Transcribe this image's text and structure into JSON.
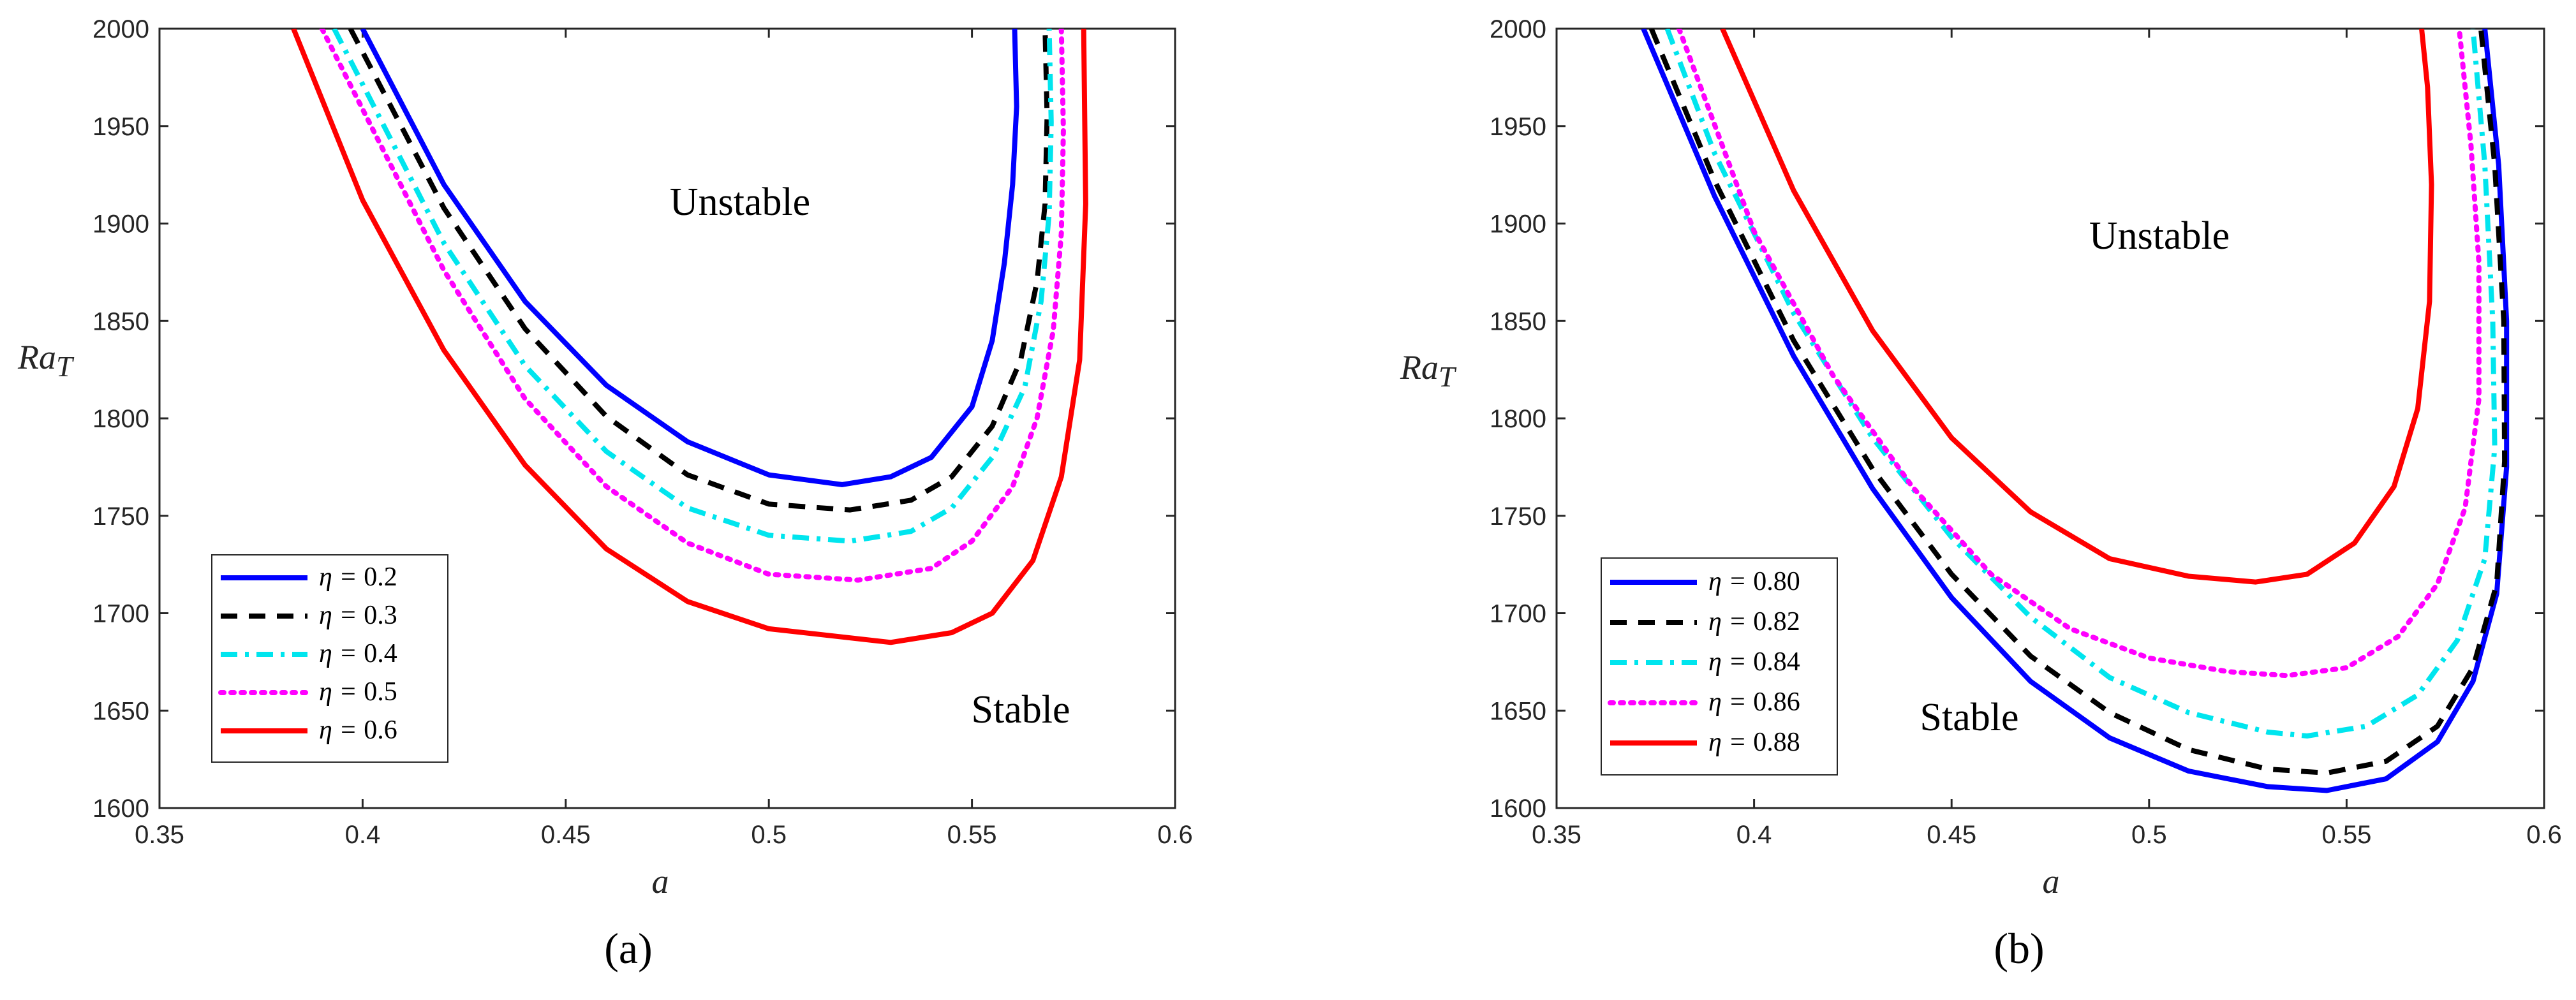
{
  "chart_data": [
    {
      "type": "line",
      "panel_label": "(a)",
      "xlabel": "a",
      "ylabel": "Ra",
      "ylabel_sub": "T",
      "xlim": [
        0.35,
        0.6
      ],
      "ylim": [
        1600,
        2000
      ],
      "xticks": [
        "0.35",
        "0.4",
        "0.45",
        "0.5",
        "0.55",
        "0.6"
      ],
      "yticks": [
        "1600",
        "1650",
        "1700",
        "1750",
        "1800",
        "1850",
        "1900",
        "1950",
        "2000"
      ],
      "region_labels": {
        "upper": "Unstable",
        "lower": "Stable"
      },
      "legend_position": "bottom-left",
      "legend_prefix": "η = ",
      "series": [
        {
          "name": "0.2",
          "color": "#0000ff",
          "style": "solid",
          "x": [
            0.4,
            0.42,
            0.44,
            0.46,
            0.48,
            0.5,
            0.518,
            0.53,
            0.54,
            0.55,
            0.555,
            0.558,
            0.56,
            0.561,
            0.5605
          ],
          "y": [
            2000,
            1920,
            1860,
            1817,
            1788,
            1771,
            1766,
            1770,
            1780,
            1806,
            1840,
            1880,
            1920,
            1960,
            2000
          ]
        },
        {
          "name": "0.3",
          "color": "#000000",
          "style": "dashed",
          "x": [
            0.397,
            0.42,
            0.44,
            0.46,
            0.48,
            0.5,
            0.52,
            0.535,
            0.545,
            0.555,
            0.562,
            0.566,
            0.568,
            0.5685,
            0.568
          ],
          "y": [
            2000,
            1908,
            1846,
            1801,
            1771,
            1756,
            1753,
            1758,
            1770,
            1796,
            1830,
            1870,
            1910,
            1955,
            2000
          ]
        },
        {
          "name": "0.4",
          "color": "#00e5ee",
          "style": "dashdot",
          "x": [
            0.393,
            0.42,
            0.44,
            0.46,
            0.48,
            0.5,
            0.52,
            0.535,
            0.545,
            0.555,
            0.563,
            0.567,
            0.569,
            0.5695,
            0.569
          ],
          "y": [
            2000,
            1890,
            1827,
            1783,
            1754,
            1740,
            1737,
            1742,
            1754,
            1780,
            1816,
            1860,
            1905,
            1952,
            2000
          ]
        },
        {
          "name": "0.5",
          "color": "#ff00ff",
          "style": "dotted",
          "x": [
            0.39,
            0.42,
            0.44,
            0.46,
            0.48,
            0.5,
            0.522,
            0.54,
            0.55,
            0.56,
            0.566,
            0.57,
            0.572,
            0.5725,
            0.572
          ],
          "y": [
            2000,
            1876,
            1810,
            1765,
            1736,
            1720,
            1717,
            1723,
            1737,
            1765,
            1800,
            1845,
            1895,
            1948,
            2000
          ]
        },
        {
          "name": "0.6",
          "color": "#ff0000",
          "style": "solid",
          "x": [
            0.383,
            0.4,
            0.42,
            0.44,
            0.46,
            0.48,
            0.5,
            0.53,
            0.545,
            0.555,
            0.565,
            0.572,
            0.5765,
            0.578,
            0.5775
          ],
          "y": [
            2000,
            1912,
            1835,
            1776,
            1733,
            1706,
            1692,
            1685,
            1690,
            1700,
            1727,
            1770,
            1830,
            1910,
            2000
          ]
        }
      ]
    },
    {
      "type": "line",
      "panel_label": "(b)",
      "xlabel": "a",
      "ylabel": "Ra",
      "ylabel_sub": "T",
      "xlim": [
        0.35,
        0.6
      ],
      "ylim": [
        1600,
        2000
      ],
      "xticks": [
        "0.35",
        "0.4",
        "0.45",
        "0.5",
        "0.55",
        "0.6"
      ],
      "yticks": [
        "1600",
        "1650",
        "1700",
        "1750",
        "1800",
        "1850",
        "1900",
        "1950",
        "2000"
      ],
      "region_labels": {
        "upper": "Unstable",
        "lower": "Stable"
      },
      "legend_position": "bottom-left",
      "legend_prefix": "η = ",
      "series": [
        {
          "name": "0.80",
          "color": "#0000ff",
          "style": "solid",
          "x": [
            0.372,
            0.39,
            0.41,
            0.43,
            0.45,
            0.47,
            0.49,
            0.51,
            0.53,
            0.545,
            0.56,
            0.573,
            0.582,
            0.588,
            0.5905,
            0.5905,
            0.5885,
            0.585
          ],
          "y": [
            2000,
            1914,
            1832,
            1764,
            1708,
            1665,
            1636,
            1619,
            1611,
            1609,
            1615,
            1634,
            1665,
            1710,
            1775,
            1850,
            1930,
            2000
          ]
        },
        {
          "name": "0.82",
          "color": "#000000",
          "style": "dashed",
          "x": [
            0.374,
            0.39,
            0.41,
            0.43,
            0.45,
            0.47,
            0.49,
            0.51,
            0.53,
            0.545,
            0.56,
            0.573,
            0.582,
            0.588,
            0.59,
            0.5898,
            0.5875,
            0.584
          ],
          "y": [
            2000,
            1922,
            1840,
            1774,
            1720,
            1678,
            1649,
            1630,
            1620,
            1618,
            1624,
            1642,
            1672,
            1715,
            1778,
            1850,
            1930,
            2000
          ]
        },
        {
          "name": "0.84",
          "color": "#00e5ee",
          "style": "dashdot",
          "x": [
            0.378,
            0.39,
            0.41,
            0.43,
            0.45,
            0.47,
            0.49,
            0.51,
            0.53,
            0.54,
            0.555,
            0.568,
            0.578,
            0.585,
            0.5875,
            0.587,
            0.585,
            0.582
          ],
          "y": [
            2000,
            1936,
            1854,
            1790,
            1739,
            1698,
            1667,
            1649,
            1639,
            1637,
            1642,
            1658,
            1686,
            1728,
            1785,
            1850,
            1930,
            2000
          ]
        },
        {
          "name": "0.86",
          "color": "#ff00ff",
          "style": "dotted",
          "x": [
            0.381,
            0.4,
            0.42,
            0.44,
            0.46,
            0.48,
            0.5,
            0.52,
            0.535,
            0.55,
            0.563,
            0.573,
            0.58,
            0.5835,
            0.5835,
            0.5815,
            0.5785
          ],
          "y": [
            2000,
            1896,
            1822,
            1765,
            1720,
            1692,
            1677,
            1670,
            1668,
            1672,
            1688,
            1715,
            1754,
            1810,
            1880,
            1940,
            2000
          ]
        },
        {
          "name": "0.88",
          "color": "#ff0000",
          "style": "solid",
          "x": [
            0.392,
            0.41,
            0.43,
            0.45,
            0.47,
            0.49,
            0.51,
            0.527,
            0.54,
            0.552,
            0.562,
            0.568,
            0.571,
            0.5715,
            0.5705,
            0.569
          ],
          "y": [
            2000,
            1917,
            1845,
            1790,
            1752,
            1728,
            1719,
            1716,
            1720,
            1736,
            1765,
            1805,
            1860,
            1920,
            1970,
            2000
          ]
        }
      ]
    }
  ]
}
